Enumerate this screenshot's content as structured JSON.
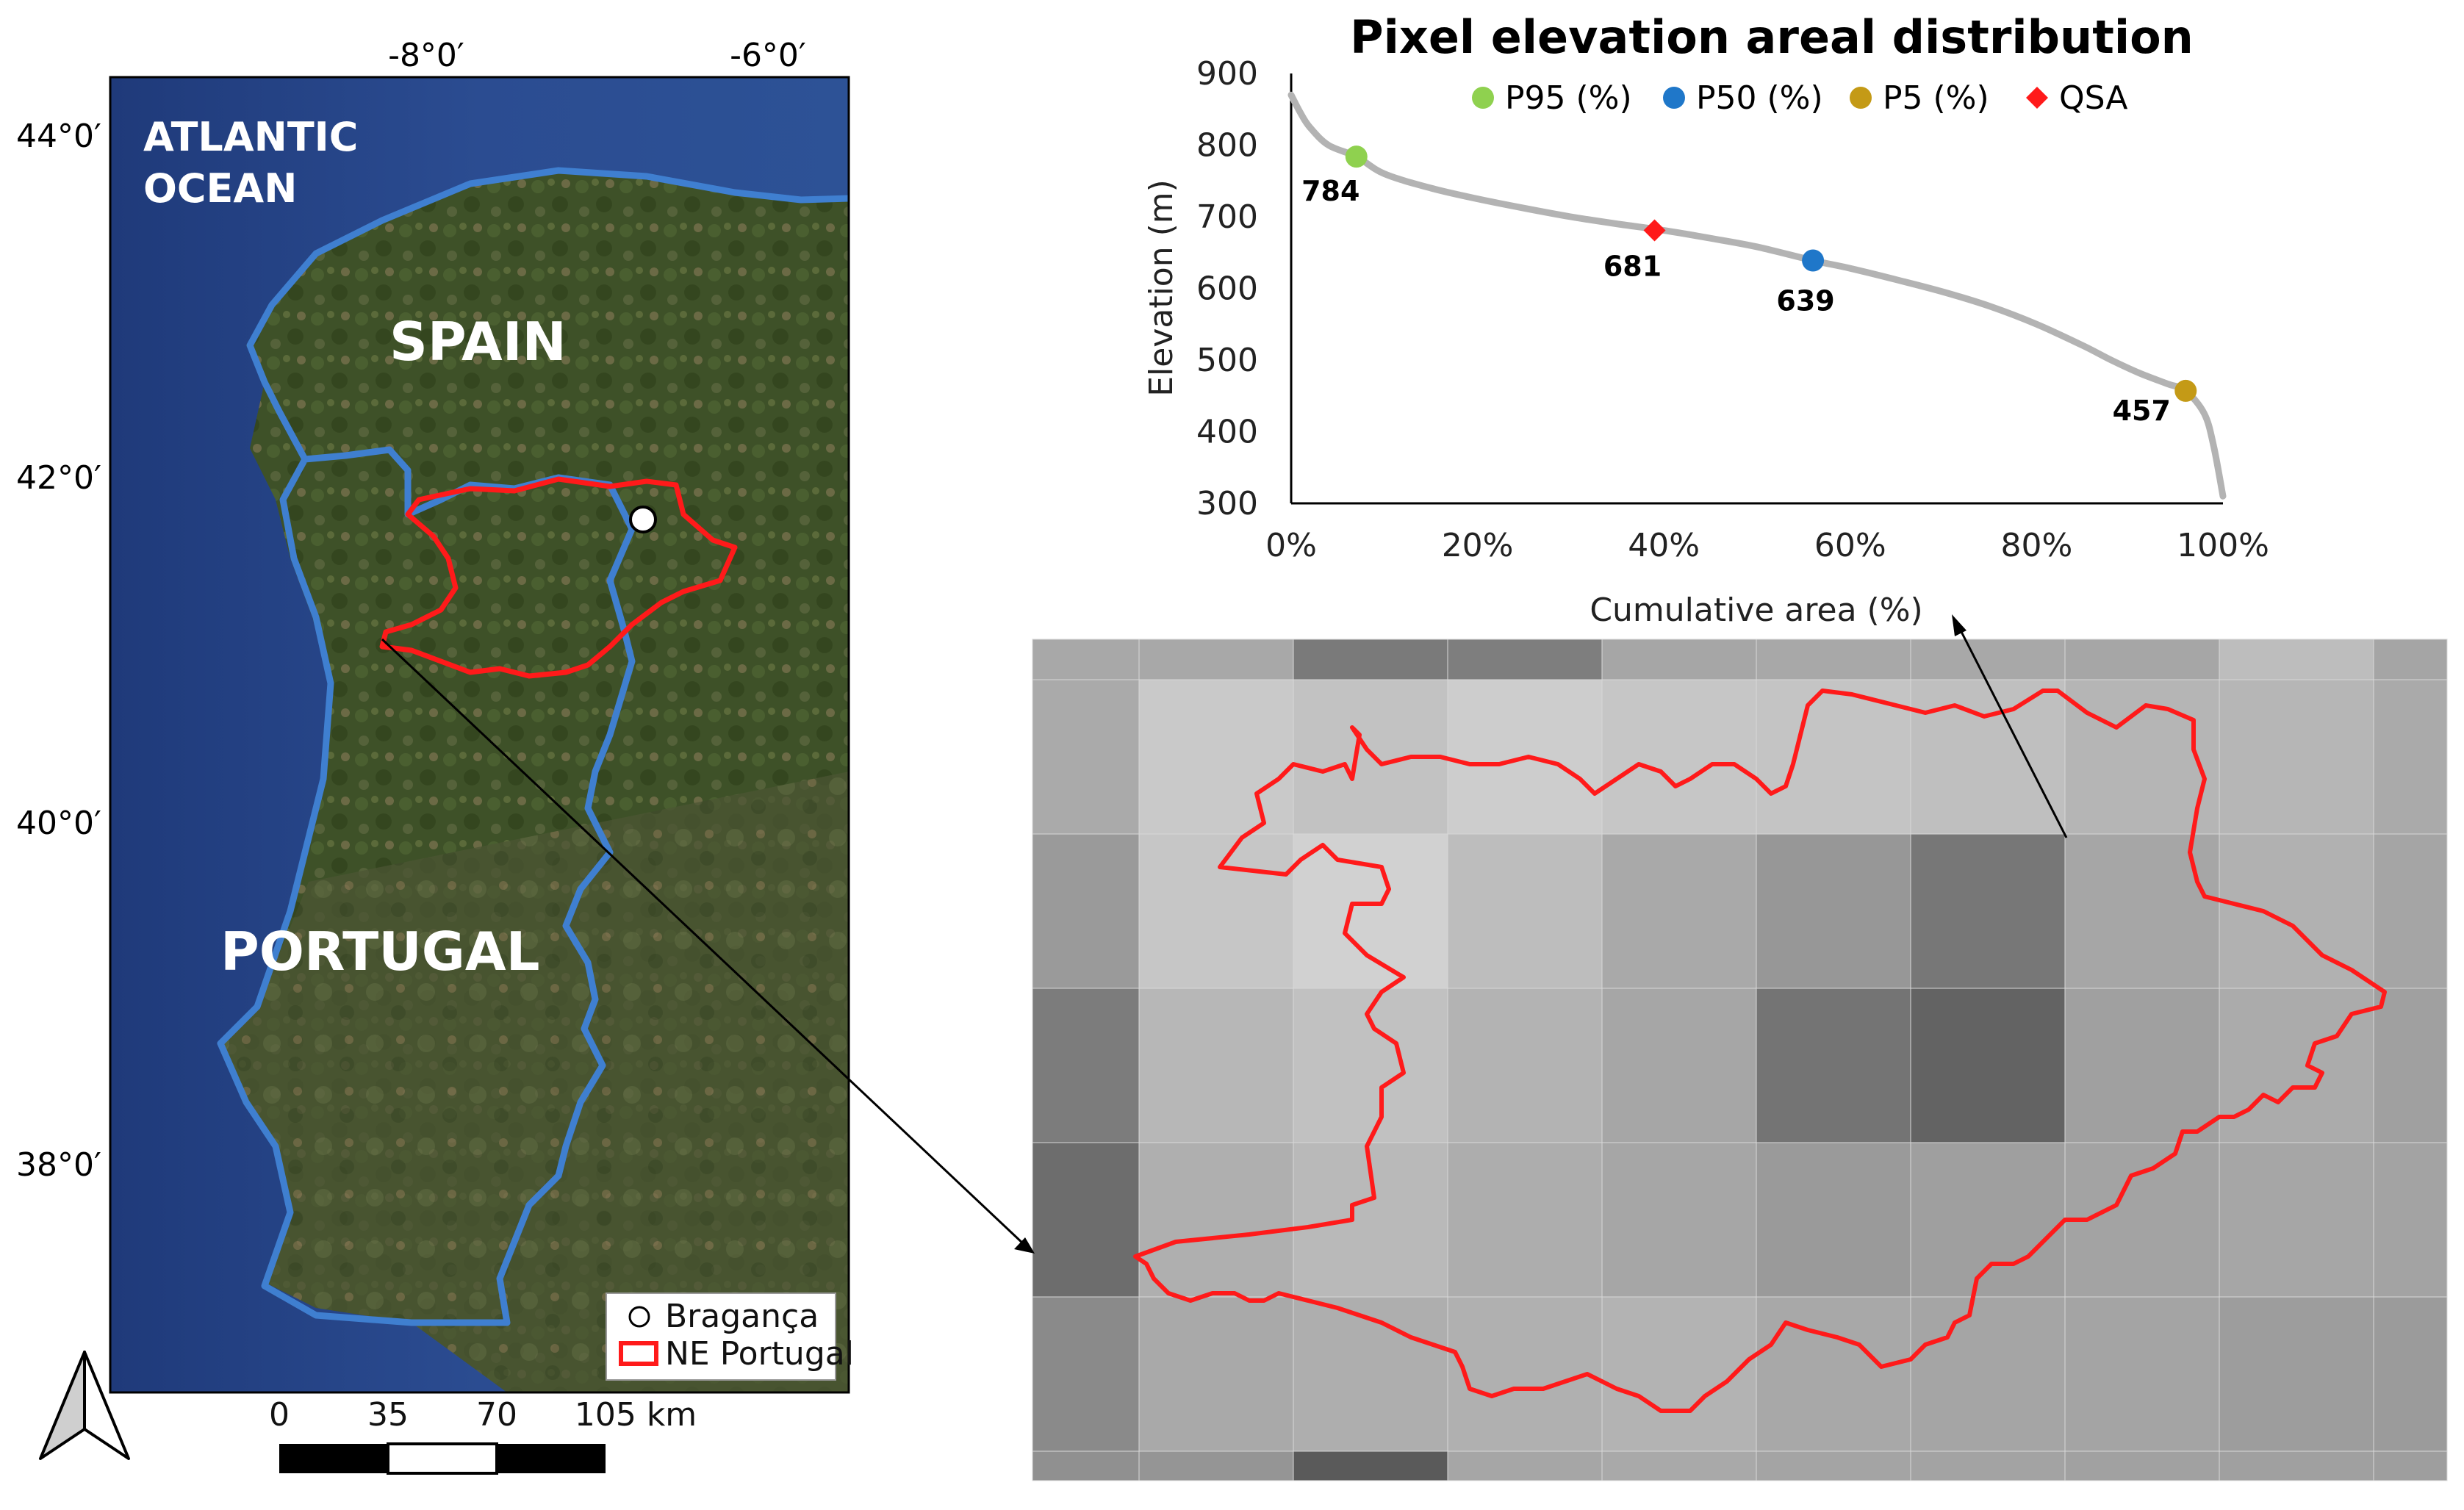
{
  "map": {
    "lon_labels": [
      "-8°0′",
      "-6°0′"
    ],
    "lat_labels": [
      "44°0′",
      "42°0′",
      "40°0′",
      "38°0′"
    ],
    "ocean_label_line1": "ATLANTIC",
    "ocean_label_line2": "OCEAN",
    "country_spain": "SPAIN",
    "country_portugal": "PORTUGAL",
    "legend": {
      "point_label": "Bragança",
      "region_label": "NE Portugal"
    },
    "scalebar": {
      "ticks": [
        "0",
        "35",
        "70",
        "105 km"
      ]
    },
    "colors": {
      "border": "#3f7fd0",
      "region": "#ff1a1a"
    }
  },
  "chart_data": {
    "type": "line",
    "title": "Pixel elevation areal distribution",
    "xlabel": "Cumulative area (%)",
    "ylabel": "Elevation (m)",
    "xlim": [
      0,
      100
    ],
    "ylim": [
      300,
      900
    ],
    "x_ticks": [
      "0%",
      "20%",
      "40%",
      "60%",
      "80%",
      "100%"
    ],
    "y_ticks": [
      "300",
      "400",
      "500",
      "600",
      "700",
      "800",
      "900"
    ],
    "curve": {
      "x": [
        0,
        1,
        2,
        4,
        7,
        10,
        15,
        20,
        25,
        30,
        35,
        40,
        45,
        50,
        56,
        60,
        65,
        70,
        75,
        80,
        85,
        88,
        91,
        94,
        96,
        98,
        99,
        100
      ],
      "y": [
        870,
        845,
        825,
        800,
        784,
        760,
        740,
        725,
        712,
        700,
        690,
        681,
        670,
        658,
        639,
        628,
        612,
        595,
        575,
        550,
        520,
        500,
        482,
        467,
        457,
        425,
        380,
        310
      ]
    },
    "markers": [
      {
        "name": "P95 (%)",
        "x": 7,
        "y": 784,
        "label": "784",
        "color": "#8fd14f",
        "shape": "circle"
      },
      {
        "name": "P50 (%)",
        "x": 56,
        "y": 639,
        "label": "639",
        "color": "#1f77c9",
        "shape": "circle"
      },
      {
        "name": "P5 (%)",
        "x": 96,
        "y": 457,
        "label": "457",
        "color": "#c49a16",
        "shape": "circle"
      },
      {
        "name": "QSA",
        "x": 39,
        "y": 681,
        "label": "681",
        "color": "#ff1a1a",
        "shape": "diamond"
      }
    ],
    "legend_placement": "top",
    "grid": false,
    "line_color": "#b3b3b3"
  }
}
